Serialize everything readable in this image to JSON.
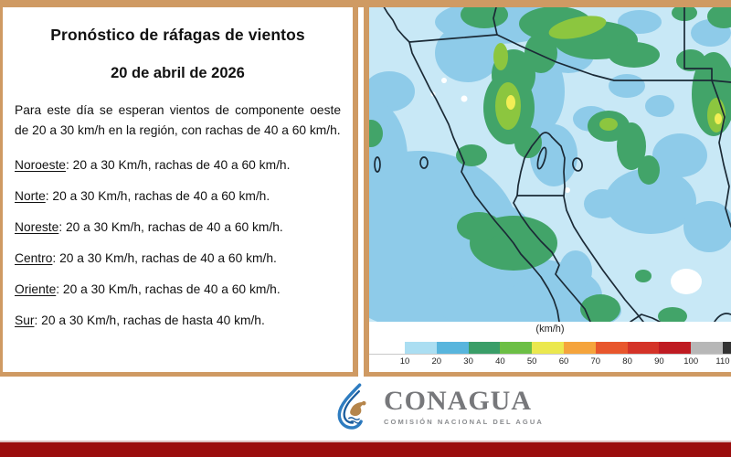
{
  "left_panel": {
    "title": "Pronóstico de ráfagas de vientos",
    "date": "20 de abril de 2026",
    "paragraph": "Para este día se esperan vientos de componente oeste de 20 a 30 km/h en la región, con rachas de 40 a 60 km/h.",
    "regions": [
      {
        "name": "Noroeste",
        "text": ":  20 a 30 Km/h, rachas de 40 a 60 km/h."
      },
      {
        "name": "Norte",
        "text": ": 20 a 30 Km/h, rachas de 40 a 60 km/h."
      },
      {
        "name": "Noreste",
        "text": ": 20 a 30 Km/h, rachas de 40 a 60 km/h."
      },
      {
        "name": "Centro",
        "text": ":  20 a 30 Km/h, rachas de 40 a 60 km/h."
      },
      {
        "name": "Oriente",
        "text": ":  20 a 30 Km/h, rachas de 40 a 60 km/h."
      },
      {
        "name": "Sur",
        "text": ":  20 a 30 Km/h, rachas de hasta 40 km/h."
      }
    ]
  },
  "map_panel": {
    "legend": {
      "unit_label": "(km/h)",
      "tick_labels": [
        "10",
        "20",
        "30",
        "40",
        "50",
        "60",
        "70",
        "80",
        "90",
        "100",
        "110"
      ],
      "segment_colors": [
        "#ffffff",
        "#abdef2",
        "#58b5dd",
        "#3a9e68",
        "#6cbf45",
        "#ebe84e",
        "#f5a43c",
        "#e8562c",
        "#d43328",
        "#bf1b22",
        "#b7b7b7",
        "#333333"
      ],
      "first_segment_width": 31,
      "segment_width": 34.8
    },
    "map_colors": {
      "wind_10_20": "#c8e8f6",
      "wind_20_30": "#8ecbe9",
      "wind_30_40": "#42a469",
      "wind_40_50": "#8cc63f",
      "wind_50_60": "#f2ee55",
      "calm_white": "#ffffff",
      "coastline": "#1b2a36"
    }
  },
  "footer": {
    "logo_text": "CONAGUA",
    "logo_subtitle": "COMISIÓN NACIONAL DEL AGUA"
  },
  "colors": {
    "frame_tan": "#cf9a63",
    "footer_red": "#9b0d0d"
  }
}
